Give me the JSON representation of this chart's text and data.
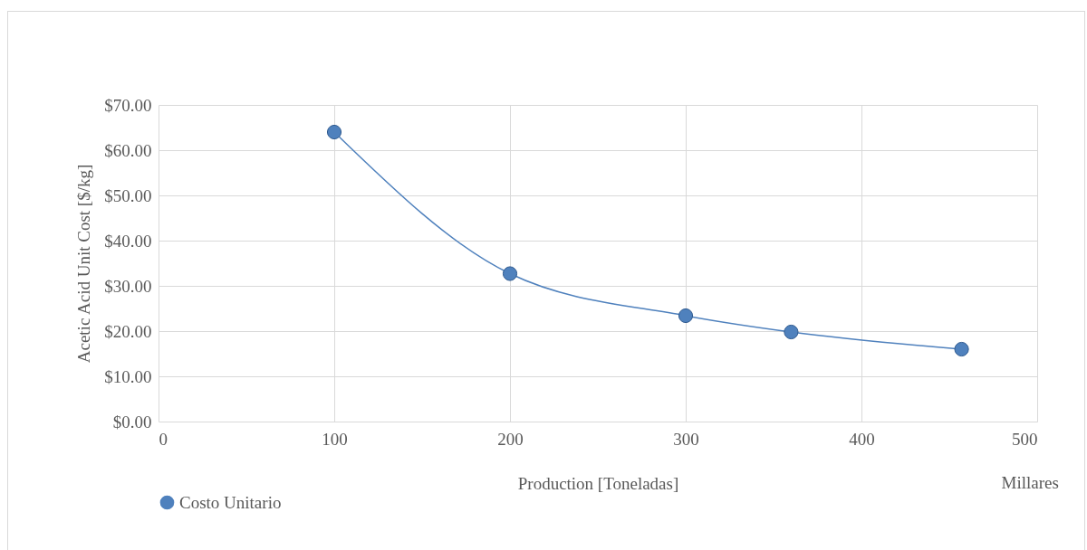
{
  "chart_data": {
    "type": "line",
    "xlabel": "Production [Toneladas]",
    "ylabel": "Acetic Acid Unit Cost [$/kg]",
    "series": [
      {
        "name": "Costo Unitario",
        "color": "#4f81bd",
        "x": [
          100,
          200,
          300,
          360,
          457
        ],
        "values": [
          64,
          32.7,
          23.4,
          19.8,
          16
        ]
      }
    ],
    "xlim": [
      0,
      500
    ],
    "xticks": [
      0,
      100,
      200,
      300,
      400,
      500
    ],
    "ylim": [
      0,
      70
    ],
    "yticks": [
      {
        "value": 0,
        "label": "$0.00"
      },
      {
        "value": 10,
        "label": "$10.00"
      },
      {
        "value": 20,
        "label": "$20.00"
      },
      {
        "value": 30,
        "label": "$30.00"
      },
      {
        "value": 40,
        "label": "$40.00"
      },
      {
        "value": 50,
        "label": "$50.00"
      },
      {
        "value": 60,
        "label": "$60.00"
      },
      {
        "value": 70,
        "label": "$70.00"
      }
    ],
    "grid": true,
    "legend": "bottom",
    "marker": "circle",
    "line_style": "solid",
    "annotations": [
      "Millares"
    ]
  }
}
